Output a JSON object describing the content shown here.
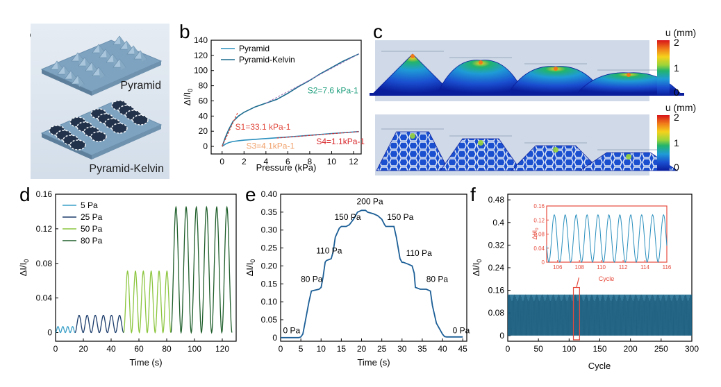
{
  "panel_labels": {
    "a": "a",
    "b": "b",
    "c": "c",
    "d": "d",
    "e": "e",
    "f": "f"
  },
  "panel_a": {
    "top_label": "Pyramid",
    "bottom_label": "Pyramid-Kelvin",
    "background": "#e9eef4",
    "structure_color": "#8fb3cf"
  },
  "panel_c": {
    "colorbar_title": "u (mm)",
    "colorbar_ticks": [
      "2",
      "1",
      "0"
    ],
    "colormap": [
      "#c81e1e",
      "#f07a1a",
      "#f5d21c",
      "#9ad43a",
      "#22b46c",
      "#1f9bd6",
      "#1a4fd0",
      "#0a1e9c"
    ],
    "rows": [
      "Pyramid",
      "Pyramid-Kelvin"
    ]
  },
  "chart_data": [
    {
      "panel": "b",
      "type": "line",
      "xlabel": "Pressure (kPa)",
      "ylabel": "ΔI/I0",
      "xlim": [
        -1,
        12.7
      ],
      "ylim": [
        -10,
        140
      ],
      "xticks": [
        "0",
        "2",
        "4",
        "6",
        "8",
        "10",
        "12"
      ],
      "yticks": [
        "0",
        "20",
        "40",
        "60",
        "80",
        "100",
        "120",
        "140"
      ],
      "legend_position": "top-left",
      "series": [
        {
          "name": "Pyramid",
          "color": "#2a8fbd",
          "x": [
            0,
            0.3,
            0.6,
            1.0,
            1.5,
            2.0,
            3,
            4,
            5,
            6,
            7,
            8,
            9,
            10,
            11,
            12.5
          ],
          "y": [
            0,
            3,
            5,
            6.5,
            7.5,
            8.2,
            9.3,
            10.3,
            11.3,
            12.3,
            13.5,
            14.6,
            15.8,
            17,
            18,
            19.5
          ]
        },
        {
          "name": "Pyramid-Kelvin",
          "color": "#1b6a8e",
          "x": [
            0,
            0.3,
            0.6,
            1.0,
            1.5,
            2.0,
            3,
            4,
            5,
            6,
            7,
            8,
            9,
            10,
            11,
            12.5
          ],
          "y": [
            0,
            12,
            22,
            33,
            40,
            45,
            52,
            57,
            62,
            70,
            79,
            87,
            96,
            104,
            112,
            122
          ]
        }
      ],
      "annotations": [
        {
          "text": "S2=7.6 kPa-1",
          "color": "#1e9e7c"
        },
        {
          "text": "S1=33.1 kPa-1",
          "color": "#e0483c"
        },
        {
          "text": "S3=4.1kPa-1",
          "color": "#f0a06a"
        },
        {
          "text": "S4=1.1kPa-1",
          "color": "#d8262a"
        }
      ]
    },
    {
      "panel": "d",
      "type": "line",
      "xlabel": "Time (s)",
      "ylabel": "ΔI/I0",
      "xlim": [
        0,
        130
      ],
      "ylim": [
        -0.01,
        0.16
      ],
      "xticks": [
        "0",
        "20",
        "40",
        "60",
        "80",
        "100",
        "120"
      ],
      "yticks": [
        "0",
        "0.04",
        "0.08",
        "0.12",
        "0.16"
      ],
      "legend_position": "top-left",
      "series": [
        {
          "name": "5 Pa",
          "color": "#3aa0c8",
          "t_start": 0,
          "t_end": 14,
          "cycles": 4,
          "amplitude": 0.007
        },
        {
          "name": "25 Pa",
          "color": "#1b3c6b",
          "t_start": 14,
          "t_end": 49,
          "cycles": 6,
          "amplitude": 0.02
        },
        {
          "name": "50 Pa",
          "color": "#8cc63f",
          "t_start": 49,
          "t_end": 83,
          "cycles": 6,
          "amplitude": 0.071
        },
        {
          "name": "80 Pa",
          "color": "#1e5e2a",
          "t_start": 83,
          "t_end": 127,
          "cycles": 6,
          "amplitude": 0.145
        }
      ]
    },
    {
      "panel": "e",
      "type": "line",
      "xlabel": "Time (s)",
      "ylabel": "ΔI/I0",
      "xlim": [
        0,
        46
      ],
      "ylim": [
        -0.01,
        0.4
      ],
      "xticks": [
        "0",
        "5",
        "10",
        "15",
        "20",
        "25",
        "30",
        "35",
        "40",
        "45"
      ],
      "yticks": [
        "0",
        "0.05",
        "0.10",
        "0.15",
        "0.20",
        "0.25",
        "0.30",
        "0.35",
        "0.40"
      ],
      "series": [
        {
          "name": "response",
          "color": "#1b5e96",
          "x": [
            0,
            4.5,
            5,
            5.5,
            6,
            7,
            7.6,
            9.5,
            10,
            10.5,
            11,
            11.3,
            12.5,
            13,
            13.5,
            14.5,
            15,
            16.2,
            17,
            18,
            19,
            20,
            21,
            21.5,
            23,
            24,
            25,
            25.7,
            26,
            27.5,
            28,
            28.6,
            29.5,
            30,
            30.3,
            31.5,
            32.5,
            33,
            33.3,
            34.5,
            36,
            37,
            37.5,
            38.5,
            40,
            40.5,
            41,
            42,
            45
          ],
          "y": [
            0,
            0,
            0.002,
            0.01,
            0.04,
            0.1,
            0.13,
            0.135,
            0.14,
            0.17,
            0.21,
            0.215,
            0.22,
            0.24,
            0.28,
            0.305,
            0.31,
            0.31,
            0.315,
            0.33,
            0.35,
            0.355,
            0.355,
            0.35,
            0.345,
            0.34,
            0.33,
            0.315,
            0.31,
            0.31,
            0.31,
            0.28,
            0.22,
            0.21,
            0.21,
            0.205,
            0.2,
            0.18,
            0.14,
            0.135,
            0.135,
            0.13,
            0.09,
            0.04,
            0.01,
            0.003,
            0.002,
            0.002,
            0.002
          ]
        }
      ],
      "annotations": [
        "0 Pa",
        "80 Pa",
        "110 Pa",
        "150 Pa",
        "200 Pa",
        "150 Pa",
        "110 Pa",
        "80 Pa",
        "0 Pa"
      ]
    },
    {
      "panel": "f",
      "type": "line",
      "xlabel": "Cycle",
      "ylabel": "ΔI/I0",
      "xlim": [
        0,
        300
      ],
      "ylim": [
        -0.02,
        0.5
      ],
      "xticks": [
        "0",
        "50",
        "100",
        "150",
        "200",
        "250",
        "300"
      ],
      "yticks": [
        "0",
        "0.08",
        "0.16",
        "0.24",
        "0.32",
        "0.4",
        "0.48"
      ],
      "series": [
        {
          "name": "cycling",
          "color": "#1b6a8e",
          "min": 0,
          "max": 0.145
        }
      ],
      "inset": {
        "xlabel": "Cycle",
        "ylabel": "ΔI/I0",
        "xlim": [
          105,
          116
        ],
        "ylim": [
          0,
          0.16
        ],
        "xticks": [
          "106",
          "108",
          "110",
          "112",
          "114",
          "116"
        ],
        "yticks": [
          "0",
          "0.04",
          "0.08",
          "0.12",
          "0.16"
        ],
        "frame_color": "#e64a3c",
        "text_color": "#e64a3c",
        "highlight_cycle": [
          107,
          117
        ]
      }
    }
  ]
}
